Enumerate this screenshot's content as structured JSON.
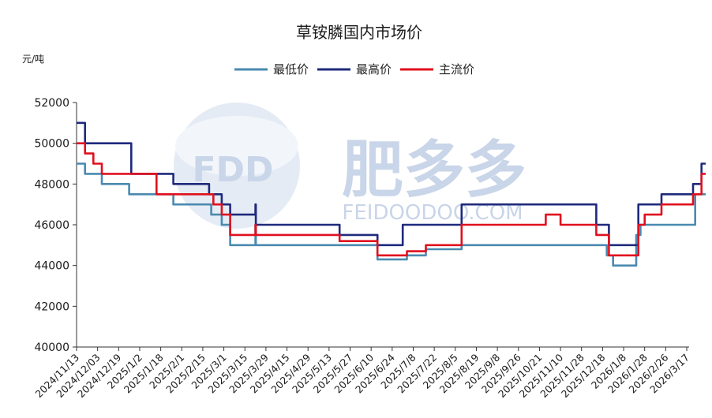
{
  "chart_data": {
    "type": "line",
    "title": "草铵膦国内市场价",
    "ylabel": "元/吨",
    "xlabel": "",
    "ylim": [
      40000,
      52000
    ],
    "yticks": [
      40000,
      42000,
      44000,
      46000,
      48000,
      50000,
      52000
    ],
    "legend_position": "top-center",
    "watermark": {
      "logo_text": "FDD",
      "brand_text": "肥多多",
      "site_text": "FEIDOODOO.COM"
    },
    "categories": [
      "2024/11/13",
      "2024/12/03",
      "2024/12/19",
      "2025/1/2",
      "2025/1/18",
      "2025/2/1",
      "2025/2/15",
      "2025/3/1",
      "2025/3/15",
      "2025/3/29",
      "2025/4/15",
      "2025/4/29",
      "2025/5/13",
      "2025/5/27",
      "2025/6/10",
      "2025/6/24",
      "2025/7/8",
      "2025/7/22",
      "2025/8/5",
      "2025/8/19",
      "2025/9/8",
      "2025/9/26",
      "2025/10/21",
      "2025/11/10",
      "2025/11/28",
      "2025/12/18",
      "2026/1/8",
      "2026/1/28",
      "2026/2/26",
      "2026/3/17"
    ],
    "series": [
      {
        "name": "最低价",
        "color": "#4a8ab0",
        "points": [
          [
            0,
            49000
          ],
          [
            0.4,
            49000
          ],
          [
            0.4,
            48500
          ],
          [
            1.2,
            48500
          ],
          [
            1.2,
            48000
          ],
          [
            2.5,
            48000
          ],
          [
            2.5,
            47500
          ],
          [
            4.6,
            47500
          ],
          [
            4.6,
            47000
          ],
          [
            6.4,
            47000
          ],
          [
            6.4,
            46500
          ],
          [
            6.9,
            46500
          ],
          [
            6.9,
            46000
          ],
          [
            7.3,
            46000
          ],
          [
            7.3,
            45000
          ],
          [
            8.5,
            45000
          ],
          [
            8.5,
            46000
          ],
          [
            8.52,
            46000
          ],
          [
            8.52,
            45000
          ],
          [
            14.3,
            45000
          ],
          [
            14.3,
            44300
          ],
          [
            15.7,
            44300
          ],
          [
            15.7,
            44500
          ],
          [
            16.6,
            44500
          ],
          [
            16.6,
            44800
          ],
          [
            18.3,
            44800
          ],
          [
            18.3,
            45000
          ],
          [
            25.2,
            45000
          ],
          [
            25.2,
            44500
          ],
          [
            25.5,
            44500
          ],
          [
            25.5,
            44000
          ],
          [
            26.6,
            44000
          ],
          [
            26.6,
            45500
          ],
          [
            26.8,
            45500
          ],
          [
            26.8,
            46000
          ],
          [
            29.4,
            46000
          ],
          [
            29.4,
            47500
          ],
          [
            29.9,
            47500
          ]
        ]
      },
      {
        "name": "最高价",
        "color": "#1f2a7c",
        "points": [
          [
            0,
            51000
          ],
          [
            0.4,
            51000
          ],
          [
            0.4,
            50000
          ],
          [
            2.6,
            50000
          ],
          [
            2.6,
            48500
          ],
          [
            4.6,
            48500
          ],
          [
            4.6,
            48000
          ],
          [
            6.3,
            48000
          ],
          [
            6.3,
            47500
          ],
          [
            6.9,
            47500
          ],
          [
            6.9,
            47000
          ],
          [
            7.3,
            47000
          ],
          [
            7.3,
            46500
          ],
          [
            8.5,
            46500
          ],
          [
            8.5,
            47000
          ],
          [
            8.52,
            47000
          ],
          [
            8.52,
            46000
          ],
          [
            12.5,
            46000
          ],
          [
            12.5,
            45500
          ],
          [
            14.3,
            45500
          ],
          [
            14.3,
            45000
          ],
          [
            15.5,
            45000
          ],
          [
            15.5,
            46000
          ],
          [
            18.3,
            46000
          ],
          [
            18.3,
            47000
          ],
          [
            24.7,
            47000
          ],
          [
            24.7,
            46000
          ],
          [
            25.3,
            46000
          ],
          [
            25.3,
            45000
          ],
          [
            26.7,
            45000
          ],
          [
            26.7,
            47000
          ],
          [
            27.8,
            47000
          ],
          [
            27.8,
            47500
          ],
          [
            29.3,
            47500
          ],
          [
            29.3,
            48000
          ],
          [
            29.7,
            48000
          ],
          [
            29.7,
            49000
          ],
          [
            29.9,
            49000
          ]
        ]
      },
      {
        "name": "主流价",
        "color": "#e0101e",
        "points": [
          [
            0,
            50000
          ],
          [
            0.4,
            50000
          ],
          [
            0.4,
            49500
          ],
          [
            0.8,
            49500
          ],
          [
            0.8,
            49000
          ],
          [
            1.2,
            49000
          ],
          [
            1.2,
            48500
          ],
          [
            3.8,
            48500
          ],
          [
            3.8,
            47500
          ],
          [
            6.5,
            47500
          ],
          [
            6.5,
            47000
          ],
          [
            6.9,
            47000
          ],
          [
            6.9,
            46500
          ],
          [
            7.3,
            46500
          ],
          [
            7.3,
            45500
          ],
          [
            8.5,
            45500
          ],
          [
            8.5,
            46000
          ],
          [
            8.52,
            46000
          ],
          [
            8.52,
            45500
          ],
          [
            12.5,
            45500
          ],
          [
            12.5,
            45200
          ],
          [
            14.3,
            45200
          ],
          [
            14.3,
            44500
          ],
          [
            15.7,
            44500
          ],
          [
            15.7,
            44700
          ],
          [
            16.6,
            44700
          ],
          [
            16.6,
            45000
          ],
          [
            18.3,
            45000
          ],
          [
            18.3,
            46000
          ],
          [
            22.3,
            46000
          ],
          [
            22.3,
            46500
          ],
          [
            23.0,
            46500
          ],
          [
            23.0,
            46000
          ],
          [
            24.7,
            46000
          ],
          [
            24.7,
            45500
          ],
          [
            25.3,
            45500
          ],
          [
            25.3,
            44500
          ],
          [
            26.7,
            44500
          ],
          [
            26.7,
            46000
          ],
          [
            27.0,
            46000
          ],
          [
            27.0,
            46500
          ],
          [
            27.8,
            46500
          ],
          [
            27.8,
            47000
          ],
          [
            29.3,
            47000
          ],
          [
            29.3,
            47500
          ],
          [
            29.7,
            47500
          ],
          [
            29.7,
            48500
          ],
          [
            29.9,
            48500
          ]
        ]
      }
    ]
  }
}
